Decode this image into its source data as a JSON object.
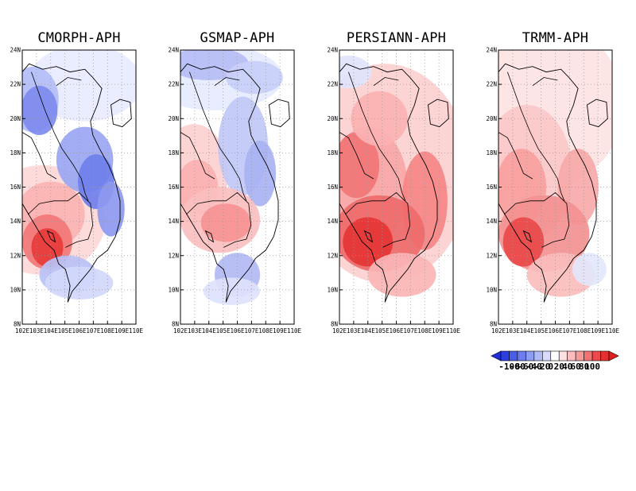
{
  "figure": {
    "panels": [
      {
        "title": "CMORPH-APH",
        "blobs": [
          [
            1,
            "#fdd8d8",
            0.18,
            0.62,
            0.55,
            0.2
          ],
          [
            2,
            "#e8ecff",
            0.55,
            0.12,
            0.5,
            0.14
          ],
          [
            1,
            "#b3bdf7",
            0.1,
            0.18,
            0.22,
            0.12
          ],
          [
            2,
            "#7d8bee",
            0.15,
            0.22,
            0.16,
            0.09
          ],
          [
            2,
            "#9aa6f2",
            0.55,
            0.4,
            0.25,
            0.12
          ],
          [
            3,
            "#6f7fec",
            0.65,
            0.48,
            0.16,
            0.1
          ],
          [
            2,
            "#8d99f0",
            0.78,
            0.58,
            0.12,
            0.1
          ],
          [
            1,
            "#fbb3b3",
            0.25,
            0.6,
            0.3,
            0.12
          ],
          [
            2,
            "#f27777",
            0.22,
            0.7,
            0.22,
            0.1
          ],
          [
            3,
            "#e73a3a",
            0.22,
            0.72,
            0.14,
            0.07
          ],
          [
            2,
            "#b9c1f5",
            0.4,
            0.82,
            0.25,
            0.07
          ],
          [
            1,
            "#d3d8fb",
            0.5,
            0.85,
            0.3,
            0.06
          ]
        ]
      },
      {
        "title": "GSMAP-APH",
        "blobs": [
          [
            1,
            "#e6eaff",
            0.3,
            0.1,
            0.6,
            0.12
          ],
          [
            2,
            "#b4bdf6",
            0.25,
            0.05,
            0.35,
            0.06
          ],
          [
            2,
            "#c8cff8",
            0.65,
            0.1,
            0.25,
            0.06
          ],
          [
            1,
            "#fcd0d0",
            0.12,
            0.45,
            0.3,
            0.18
          ],
          [
            2,
            "#fbb0b0",
            0.15,
            0.5,
            0.18,
            0.1
          ],
          [
            2,
            "#c0c8f6",
            0.55,
            0.35,
            0.22,
            0.18
          ],
          [
            2,
            "#a9b3f3",
            0.7,
            0.45,
            0.14,
            0.12
          ],
          [
            1,
            "#fbbfbf",
            0.35,
            0.62,
            0.35,
            0.12
          ],
          [
            2,
            "#f69393",
            0.4,
            0.63,
            0.22,
            0.07
          ],
          [
            2,
            "#b2baf4",
            0.5,
            0.82,
            0.2,
            0.08
          ],
          [
            1,
            "#dde2fc",
            0.45,
            0.88,
            0.25,
            0.05
          ]
        ]
      },
      {
        "title": "PERSIANN-APH",
        "blobs": [
          [
            1,
            "#fcd0d0",
            0.4,
            0.45,
            0.75,
            0.4
          ],
          [
            2,
            "#f9a6a6",
            0.25,
            0.5,
            0.35,
            0.22
          ],
          [
            3,
            "#f17676",
            0.15,
            0.42,
            0.2,
            0.12
          ],
          [
            2,
            "#fbb2b2",
            0.35,
            0.25,
            0.25,
            0.1
          ],
          [
            3,
            "#f58585",
            0.75,
            0.55,
            0.2,
            0.18
          ],
          [
            3,
            "#ef6a6a",
            0.35,
            0.67,
            0.4,
            0.14
          ],
          [
            4,
            "#e53535",
            0.25,
            0.7,
            0.22,
            0.09
          ],
          [
            2,
            "#fbb5b5",
            0.55,
            0.82,
            0.3,
            0.08
          ],
          [
            1,
            "#dfe3fc",
            0.08,
            0.08,
            0.2,
            0.06
          ]
        ]
      },
      {
        "title": "TRMM-APH",
        "blobs": [
          [
            1,
            "#fde3e3",
            0.4,
            0.2,
            0.7,
            0.3
          ],
          [
            1,
            "#fbc9c9",
            0.25,
            0.45,
            0.4,
            0.25
          ],
          [
            2,
            "#f8a0a0",
            0.2,
            0.5,
            0.22,
            0.14
          ],
          [
            2,
            "#f9a9a9",
            0.7,
            0.5,
            0.18,
            0.14
          ],
          [
            2,
            "#f49191",
            0.4,
            0.67,
            0.4,
            0.14
          ],
          [
            3,
            "#e94848",
            0.22,
            0.7,
            0.18,
            0.09
          ],
          [
            2,
            "#fbbdbd",
            0.55,
            0.82,
            0.3,
            0.08
          ],
          [
            1,
            "#e3e7fc",
            0.8,
            0.8,
            0.15,
            0.06
          ]
        ]
      }
    ],
    "y_ticks": [
      "24N",
      "22N",
      "20N",
      "18N",
      "16N",
      "14N",
      "12N",
      "10N",
      "8N"
    ],
    "x_ticks": [
      "102E",
      "103E",
      "104E",
      "105E",
      "106E",
      "107E",
      "108E",
      "109E",
      "110E"
    ],
    "colorbar": {
      "colors": [
        "#2b3fe0",
        "#4a5de6",
        "#6c7ded",
        "#8e9cf1",
        "#b0bbf6",
        "#d8dcfa",
        "#ffffff",
        "#fde0e0",
        "#fbbdbd",
        "#f79a9a",
        "#f27272",
        "#ec4a4a",
        "#e53030"
      ],
      "left_arrow_color": "#1f30d8",
      "right_arrow_color": "#e02020",
      "labels": [
        "-100",
        "-80",
        "-60",
        "-40",
        "-20",
        "0",
        "20",
        "40",
        "60",
        "80",
        "100"
      ]
    }
  }
}
